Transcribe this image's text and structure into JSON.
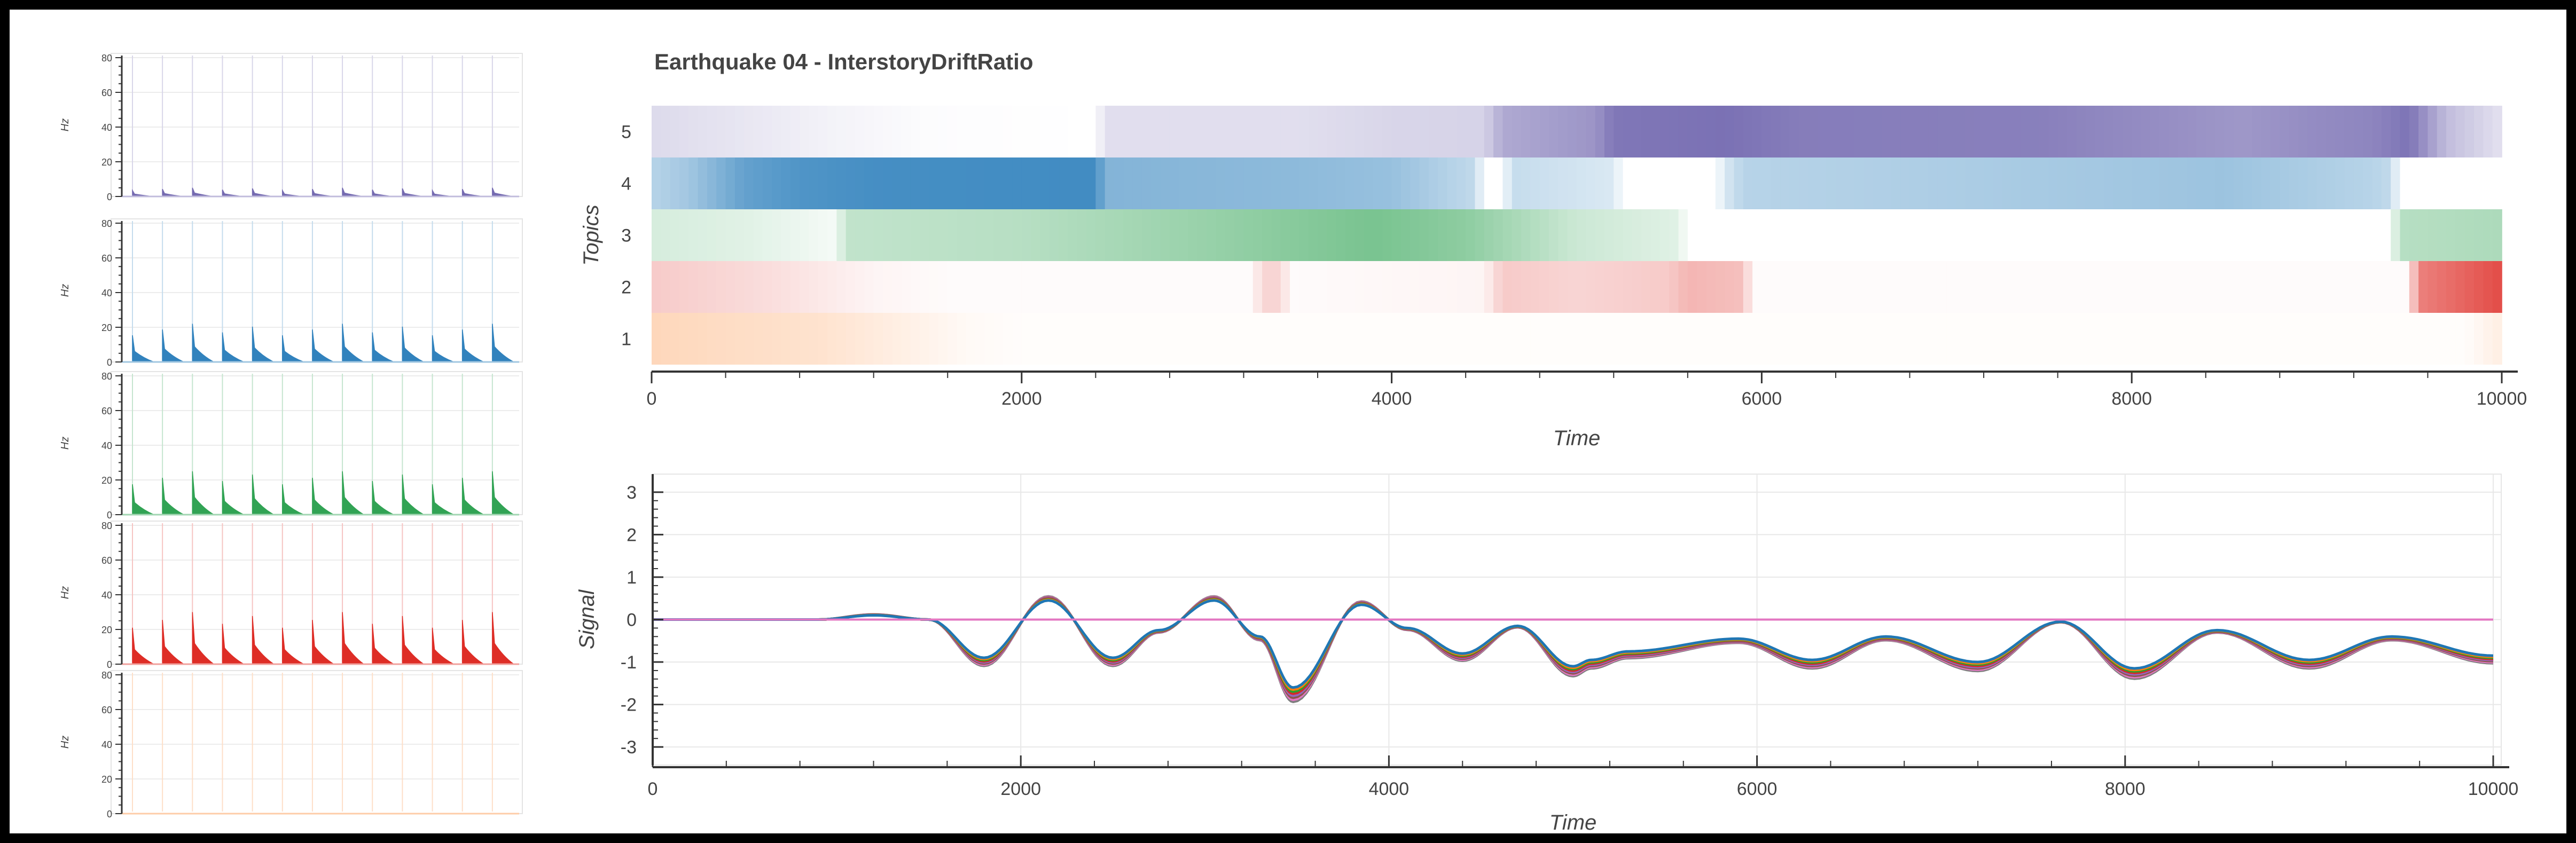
{
  "colors": {
    "topic_1": "#fd8d3c",
    "topic_2": "#de2d26",
    "topic_3": "#31a354",
    "topic_4": "#3182bd",
    "topic_5": "#756bb1",
    "signal_lines": [
      "#1f77b4",
      "#ff7f0e",
      "#2ca02c",
      "#d62728",
      "#9467bd",
      "#8c564b",
      "#e377c2",
      "#7f7f7f"
    ],
    "zero_line": "#e377c2"
  },
  "chart_data": [
    {
      "id": "spectrogram-panels",
      "type": "area",
      "panels": [
        {
          "topic": 5,
          "ylabel": "Hz",
          "ylim": [
            0,
            80
          ],
          "yticks": [
            0,
            20,
            40,
            60,
            80
          ],
          "peak": 5,
          "events": 13
        },
        {
          "topic": 4,
          "ylabel": "Hz",
          "ylim": [
            0,
            80
          ],
          "yticks": [
            0,
            20,
            40,
            60,
            80
          ],
          "peak": 22,
          "events": 13
        },
        {
          "topic": 3,
          "ylabel": "Hz",
          "ylim": [
            0,
            80
          ],
          "yticks": [
            0,
            20,
            40,
            60,
            80
          ],
          "peak": 25,
          "events": 13
        },
        {
          "topic": 2,
          "ylabel": "Hz",
          "ylim": [
            0,
            80
          ],
          "yticks": [
            0,
            20,
            40,
            60,
            80
          ],
          "peak": 30,
          "events": 13
        },
        {
          "topic": 1,
          "ylabel": "Hz",
          "ylim": [
            0,
            80
          ],
          "yticks": [
            0,
            20,
            40,
            60,
            80
          ],
          "peak": 0,
          "events": 13
        }
      ]
    },
    {
      "id": "topics-heatmap",
      "type": "heatmap",
      "title": "Earthquake 04 - InterstoryDriftRatio",
      "xlabel": "Time",
      "ylabel": "Topics",
      "xlim": [
        0,
        10000
      ],
      "xticks": [
        0,
        2000,
        4000,
        6000,
        8000,
        10000
      ],
      "categories": [
        "1",
        "2",
        "3",
        "4",
        "5"
      ],
      "knots": {
        "topic_5": [
          [
            0,
            0.25
          ],
          [
            600,
            0.15
          ],
          [
            1000,
            0.08
          ],
          [
            1500,
            0.02
          ],
          [
            2400,
            0.0
          ],
          [
            2450,
            0.22
          ],
          [
            3500,
            0.22
          ],
          [
            4000,
            0.28
          ],
          [
            4500,
            0.3
          ],
          [
            4600,
            0.58
          ],
          [
            5100,
            0.72
          ],
          [
            5200,
            0.92
          ],
          [
            5800,
            0.96
          ],
          [
            6200,
            0.88
          ],
          [
            7500,
            0.86
          ],
          [
            8600,
            0.7
          ],
          [
            9000,
            0.78
          ],
          [
            9300,
            0.82
          ],
          [
            9500,
            0.94
          ],
          [
            9700,
            0.45
          ],
          [
            10000,
            0.2
          ]
        ],
        "topic_4": [
          [
            0,
            0.35
          ],
          [
            200,
            0.45
          ],
          [
            500,
            0.75
          ],
          [
            800,
            0.85
          ],
          [
            1200,
            0.9
          ],
          [
            2400,
            0.92
          ],
          [
            2450,
            0.6
          ],
          [
            3500,
            0.55
          ],
          [
            4000,
            0.5
          ],
          [
            4450,
            0.3
          ],
          [
            4500,
            0.0
          ],
          [
            4600,
            0.0
          ],
          [
            4650,
            0.28
          ],
          [
            5200,
            0.18
          ],
          [
            5250,
            0.0
          ],
          [
            5750,
            0.0
          ],
          [
            5800,
            0.18
          ],
          [
            5900,
            0.35
          ],
          [
            7000,
            0.4
          ],
          [
            8500,
            0.48
          ],
          [
            9300,
            0.35
          ],
          [
            9400,
            0.3
          ],
          [
            9450,
            0.0
          ],
          [
            10000,
            0.0
          ]
        ],
        "topic_3": [
          [
            0,
            0.2
          ],
          [
            500,
            0.15
          ],
          [
            1000,
            0.05
          ],
          [
            1050,
            0.3
          ],
          [
            2000,
            0.35
          ],
          [
            3000,
            0.5
          ],
          [
            3900,
            0.65
          ],
          [
            4400,
            0.55
          ],
          [
            4600,
            0.45
          ],
          [
            5000,
            0.25
          ],
          [
            5550,
            0.15
          ],
          [
            5600,
            0.0
          ],
          [
            9400,
            0.0
          ],
          [
            9450,
            0.35
          ],
          [
            10000,
            0.4
          ]
        ],
        "topic_2": [
          [
            0,
            0.25
          ],
          [
            700,
            0.15
          ],
          [
            1200,
            0.05
          ],
          [
            1600,
            0.02
          ],
          [
            3250,
            0.02
          ],
          [
            3300,
            0.2
          ],
          [
            3400,
            0.2
          ],
          [
            3450,
            0.02
          ],
          [
            4500,
            0.05
          ],
          [
            4600,
            0.25
          ],
          [
            5000,
            0.2
          ],
          [
            5500,
            0.25
          ],
          [
            5600,
            0.35
          ],
          [
            5900,
            0.3
          ],
          [
            5950,
            0.02
          ],
          [
            9500,
            0.02
          ],
          [
            9550,
            0.6
          ],
          [
            10000,
            0.85
          ]
        ],
        "topic_1": [
          [
            0,
            0.35
          ],
          [
            400,
            0.3
          ],
          [
            900,
            0.25
          ],
          [
            1300,
            0.15
          ],
          [
            1700,
            0.05
          ],
          [
            2000,
            0.02
          ],
          [
            9800,
            0.02
          ],
          [
            10000,
            0.15
          ]
        ]
      }
    },
    {
      "id": "signal-plot",
      "type": "line",
      "xlabel": "Time",
      "ylabel": "Signal",
      "xlim": [
        0,
        10000
      ],
      "ylim": [
        -3.3,
        3.3
      ],
      "xticks": [
        0,
        2000,
        4000,
        6000,
        8000,
        10000
      ],
      "yticks": [
        -3,
        -2,
        -1,
        0,
        1,
        2,
        3
      ],
      "x": [
        0,
        900,
        1200,
        1500,
        1800,
        2150,
        2500,
        2750,
        3050,
        3300,
        3480,
        3850,
        4100,
        4400,
        4700,
        5000,
        5100,
        5300,
        5900,
        6300,
        6700,
        7200,
        7650,
        8050,
        8500,
        9000,
        9450,
        10000
      ],
      "y": [
        0,
        0,
        0.1,
        0,
        -0.9,
        0.45,
        -0.9,
        -0.25,
        0.45,
        -0.4,
        -1.6,
        0.35,
        -0.2,
        -0.8,
        -0.15,
        -1.1,
        -0.95,
        -0.75,
        -0.45,
        -0.95,
        -0.4,
        -1.0,
        -0.05,
        -1.15,
        -0.25,
        -0.95,
        -0.4,
        -0.85
      ],
      "series_offsets": [
        0,
        0.03,
        0.06,
        0.09,
        0.12,
        0.15,
        0.18,
        0.21
      ]
    }
  ]
}
